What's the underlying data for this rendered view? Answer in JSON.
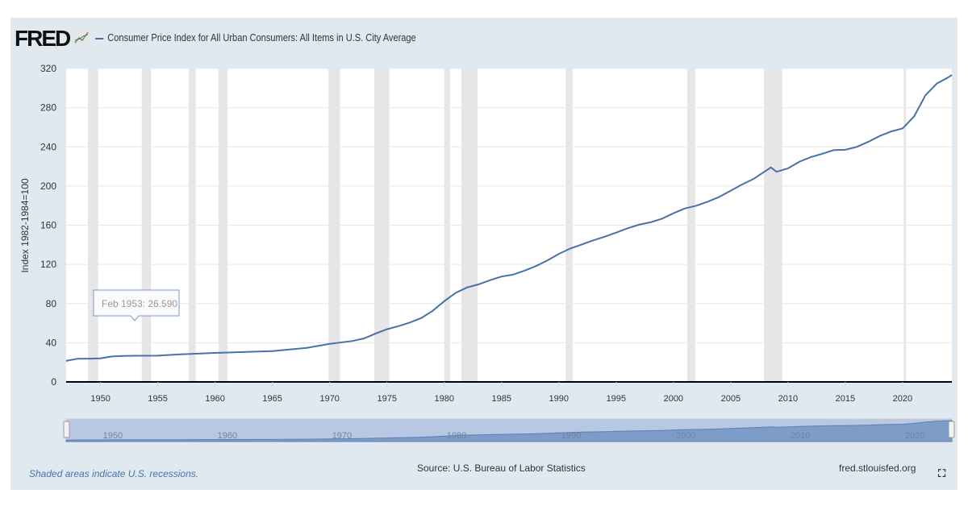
{
  "header": {
    "logo": "FRED",
    "title": "Consumer Price Index for All Urban Consumers: All Items in U.S. City Average"
  },
  "footer": {
    "note": "Shaded areas indicate U.S. recessions.",
    "source": "Source: U.S. Bureau of Labor Statistics",
    "site": "fred.stlouisfed.org"
  },
  "tooltip": "Feb 1953: 26.590",
  "colors": {
    "line": "#4572a7",
    "recession": "#e6e6e6"
  },
  "chart_data": {
    "type": "line",
    "title": "Consumer Price Index for All Urban Consumers: All Items in U.S. City Average",
    "ylabel": "Index 1982-1984=100",
    "xlabel": "",
    "ylim": [
      0,
      320
    ],
    "xlim": [
      1947,
      2024.3
    ],
    "yticks": [
      0,
      40,
      80,
      120,
      160,
      200,
      240,
      280,
      320
    ],
    "xticks": [
      1950,
      1955,
      1960,
      1965,
      1970,
      1975,
      1980,
      1985,
      1990,
      1995,
      2000,
      2005,
      2010,
      2015,
      2020
    ],
    "navigator_ticks": [
      1950,
      1960,
      1970,
      1980,
      1990,
      2000,
      2010,
      2020
    ],
    "recessions": [
      [
        1948.9,
        1949.8
      ],
      [
        1953.6,
        1954.4
      ],
      [
        1957.7,
        1958.3
      ],
      [
        1960.3,
        1961.1
      ],
      [
        1969.9,
        1970.9
      ],
      [
        1973.9,
        1975.2
      ],
      [
        1980.0,
        1980.5
      ],
      [
        1981.5,
        1982.9
      ],
      [
        1990.6,
        1991.2
      ],
      [
        2001.2,
        2001.9
      ],
      [
        2007.9,
        2009.5
      ],
      [
        2020.1,
        2020.3
      ]
    ],
    "x": [
      1947,
      1948,
      1949,
      1950,
      1951,
      1952,
      1953,
      1955,
      1957,
      1960,
      1965,
      1968,
      1970,
      1972,
      1973,
      1974,
      1975,
      1976,
      1977,
      1978,
      1979,
      1980,
      1981,
      1982,
      1983,
      1984,
      1985,
      1986,
      1987,
      1988,
      1989,
      1990,
      1991,
      1992,
      1993,
      1994,
      1995,
      1996,
      1997,
      1998,
      1999,
      2000,
      2001,
      2002,
      2003,
      2004,
      2005,
      2006,
      2007,
      2008.5,
      2009,
      2010,
      2011,
      2012,
      2013,
      2014,
      2015,
      2016,
      2017,
      2018,
      2019,
      2020,
      2021,
      2022,
      2023,
      2024,
      2024.3
    ],
    "y": [
      21.5,
      23.7,
      23.8,
      24.1,
      26,
      26.5,
      26.7,
      26.8,
      28.1,
      29.6,
      31.5,
      34.8,
      38.8,
      41.8,
      44.4,
      49.3,
      53.8,
      56.9,
      60.6,
      65.2,
      72.6,
      82.4,
      90.9,
      96.5,
      99.6,
      103.9,
      107.6,
      109.6,
      113.6,
      118.3,
      124,
      130.7,
      136.2,
      140.3,
      144.5,
      148.2,
      152.4,
      156.9,
      160.5,
      163,
      166.6,
      172.2,
      177.1,
      179.9,
      184,
      188.9,
      195.3,
      201.6,
      207.3,
      219,
      214.5,
      218,
      224.9,
      229.6,
      233,
      236.7,
      237,
      240,
      245.1,
      251.1,
      255.7,
      258.8,
      271,
      292.7,
      304.7,
      311,
      313.5
    ]
  }
}
